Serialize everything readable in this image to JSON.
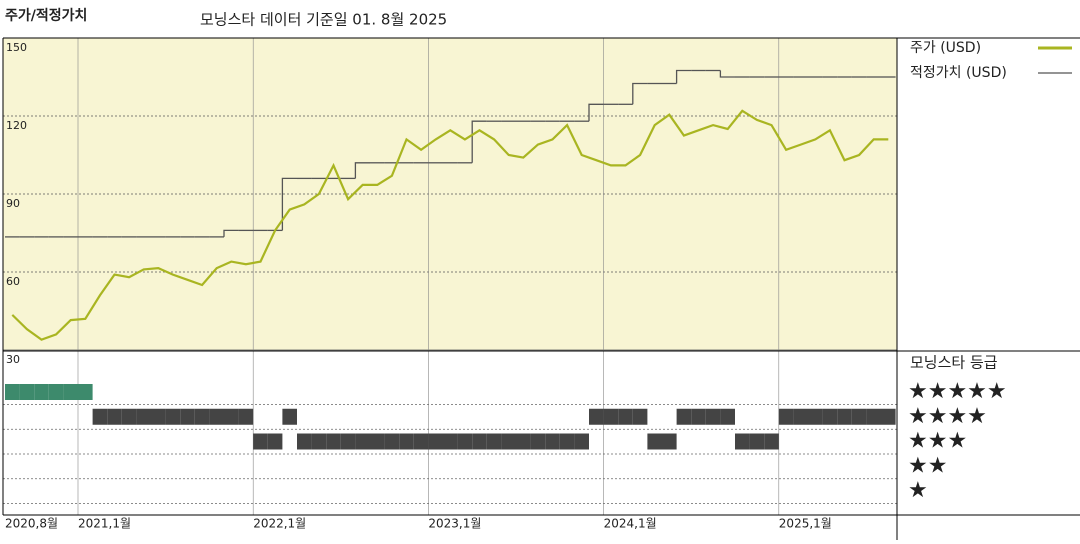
{
  "chart_data": {
    "type": "line",
    "title": "주가/적정가치",
    "subtitle": "모닝스타 데이터 기준일 01. 8월 2025",
    "x": [
      "2020-08",
      "2020-09",
      "2020-10",
      "2020-11",
      "2020-12",
      "2021-01",
      "2021-02",
      "2021-03",
      "2021-04",
      "2021-05",
      "2021-06",
      "2021-07",
      "2021-08",
      "2021-09",
      "2021-10",
      "2021-11",
      "2021-12",
      "2022-01",
      "2022-02",
      "2022-03",
      "2022-04",
      "2022-05",
      "2022-06",
      "2022-07",
      "2022-08",
      "2022-09",
      "2022-10",
      "2022-11",
      "2022-12",
      "2023-01",
      "2023-02",
      "2023-03",
      "2023-04",
      "2023-05",
      "2023-06",
      "2023-07",
      "2023-08",
      "2023-09",
      "2023-10",
      "2023-11",
      "2023-12",
      "2024-01",
      "2024-02",
      "2024-03",
      "2024-04",
      "2024-05",
      "2024-06",
      "2024-07",
      "2024-08",
      "2024-09",
      "2024-10",
      "2024-11",
      "2024-12",
      "2025-01",
      "2025-02",
      "2025-03",
      "2025-04",
      "2025-05",
      "2025-06",
      "2025-07",
      "2025-08"
    ],
    "series": [
      {
        "name": "주가 (USD)",
        "color": "#a9b521",
        "values": [
          43.5,
          38,
          34,
          36,
          41.5,
          42,
          51,
          59,
          58,
          61,
          61.5,
          59,
          57,
          55,
          61.5,
          64,
          63,
          64,
          76,
          84,
          86,
          90,
          101,
          88,
          93.5,
          93.5,
          97,
          111,
          107,
          111,
          114.5,
          111,
          114.5,
          111,
          105,
          104,
          109,
          111,
          116.5,
          105,
          103,
          101,
          101,
          105,
          116.5,
          120.5,
          112.5,
          114.5,
          116.5,
          115,
          122,
          118.5,
          116.5,
          107,
          109,
          111,
          114.5,
          103,
          105,
          111,
          111
        ]
      },
      {
        "name": "적정가치 (USD)",
        "color": "#555555",
        "values": [
          73.5,
          73.5,
          73.5,
          73.5,
          73.5,
          73.5,
          73.5,
          73.5,
          73.5,
          73.5,
          73.5,
          73.5,
          73.5,
          73.5,
          73.5,
          76,
          76,
          76,
          76,
          96,
          96,
          96,
          96,
          96,
          102,
          102,
          102,
          102,
          102,
          102,
          102,
          102,
          118,
          118,
          118,
          118,
          118,
          118,
          118,
          118,
          124.5,
          124.5,
          124.5,
          132.5,
          132.5,
          132.5,
          137.5,
          137.5,
          137.5,
          135,
          135,
          135,
          135,
          135,
          135,
          135,
          135,
          135,
          135,
          135,
          135
        ]
      }
    ],
    "xlim": [
      "2020-08",
      "2025-09"
    ],
    "xticks": [
      {
        "value": "2020-08",
        "label": "2020,8월"
      },
      {
        "value": "2021-01",
        "label": "2021,1월"
      },
      {
        "value": "2022-01",
        "label": "2022,1월"
      },
      {
        "value": "2023-01",
        "label": "2023,1월"
      },
      {
        "value": "2024-01",
        "label": "2024,1월"
      },
      {
        "value": "2025-01",
        "label": "2025,1월"
      }
    ],
    "ylim": [
      30,
      150
    ],
    "yticks": [
      30,
      60,
      90,
      120,
      150
    ],
    "rating_title": "모닝스타 등급",
    "rating_labels": [
      "★★★★★",
      "★★★★",
      "★★★",
      "★★",
      "★"
    ],
    "ratings": [
      5,
      5,
      5,
      5,
      5,
      5,
      4,
      4,
      4,
      4,
      4,
      4,
      4,
      4,
      4,
      4,
      4,
      3,
      3,
      4,
      3,
      3,
      3,
      3,
      3,
      3,
      3,
      3,
      3,
      3,
      3,
      3,
      3,
      3,
      3,
      3,
      3,
      3,
      3,
      3,
      4,
      4,
      4,
      4,
      3,
      3,
      4,
      4,
      4,
      4,
      3,
      3,
      3,
      4,
      4,
      4,
      4,
      4,
      4,
      4,
      4
    ],
    "rating_colors": {
      "5": "#3d8a6c",
      "other": "#444444"
    }
  }
}
